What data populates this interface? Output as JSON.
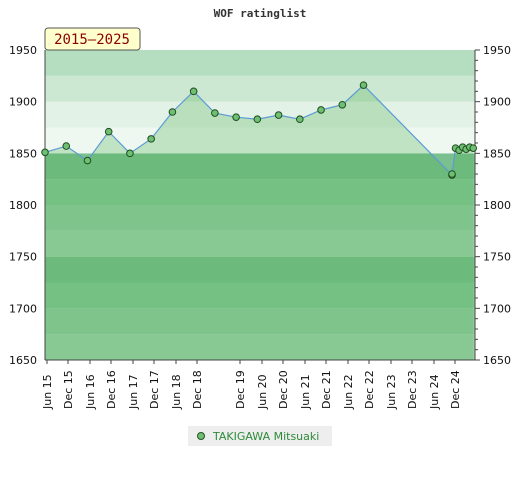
{
  "chart_data": {
    "type": "line",
    "title": "WOF ratinglist",
    "badge": "2015–2025",
    "xlabel": "",
    "ylabel": "",
    "ylim": [
      1650,
      1950
    ],
    "yticks": [
      1650,
      1700,
      1750,
      1800,
      1850,
      1900,
      1950
    ],
    "x_tick_labels": [
      "Jun 15",
      "Dec 15",
      "Jun 16",
      "Dec 16",
      "Jun 17",
      "Dec 17",
      "Jun 18",
      "Dec 18",
      "Dec 19",
      "Jun 20",
      "Dec 20",
      "Jun 21",
      "Dec 21",
      "Jun 22",
      "Dec 22",
      "Jun 23",
      "Dec 23",
      "Jun 24",
      "Dec 24"
    ],
    "grid": true,
    "legend": "bottom-center",
    "series": [
      {
        "name": "TAKIGAWA Mitsuaki",
        "color": "#6fbf73",
        "line_color": "#5b9bd5",
        "points": [
          {
            "x": "2015-06",
            "y": 1851
          },
          {
            "x": "2015-12",
            "y": 1857
          },
          {
            "x": "2016-06",
            "y": 1843
          },
          {
            "x": "2016-12",
            "y": 1871
          },
          {
            "x": "2017-06",
            "y": 1850
          },
          {
            "x": "2017-12",
            "y": 1864
          },
          {
            "x": "2018-06",
            "y": 1890
          },
          {
            "x": "2018-12",
            "y": 1910
          },
          {
            "x": "2019-06",
            "y": 1889
          },
          {
            "x": "2019-12",
            "y": 1885
          },
          {
            "x": "2020-06",
            "y": 1883
          },
          {
            "x": "2020-12",
            "y": 1887
          },
          {
            "x": "2021-06",
            "y": 1883
          },
          {
            "x": "2021-12",
            "y": 1892
          },
          {
            "x": "2022-06",
            "y": 1897
          },
          {
            "x": "2022-12",
            "y": 1916
          },
          {
            "x": "2025-01",
            "y": 1829
          },
          {
            "x": "2025-01",
            "y": 1830
          },
          {
            "x": "2025-02",
            "y": 1855
          },
          {
            "x": "2025-03",
            "y": 1853
          },
          {
            "x": "2025-04",
            "y": 1856
          },
          {
            "x": "2025-05",
            "y": 1854
          },
          {
            "x": "2025-06",
            "y": 1856
          },
          {
            "x": "2025-07",
            "y": 1855
          }
        ]
      }
    ]
  },
  "legend_label": "TAKIGAWA Mitsuaki"
}
